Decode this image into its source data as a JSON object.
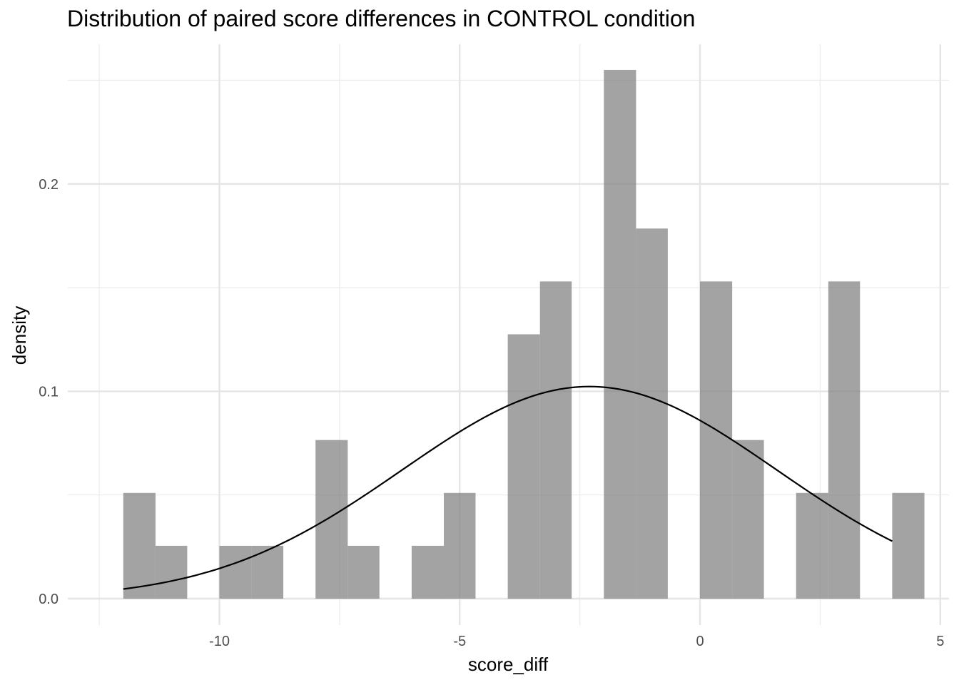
{
  "chart_data": {
    "type": "bar",
    "subtype": "histogram-with-normal-density-curve",
    "title": "Distribution of paired score differences in CONTROL condition",
    "xlabel": "score_diff",
    "ylabel": "density",
    "xlim": [
      -12.5,
      5
    ],
    "ylim": [
      0,
      0.255
    ],
    "x_ticks": [
      -10,
      -5,
      0,
      5
    ],
    "x_tick_labels": [
      "-10",
      "-5",
      "0",
      "5"
    ],
    "y_ticks": [
      0.0,
      0.1,
      0.2
    ],
    "y_tick_labels": [
      "0.0",
      "0.1",
      "0.2"
    ],
    "grid": true,
    "bar_color": "#808080",
    "bins": [
      {
        "x0": -12.0,
        "x1": -11.33,
        "density": 0.051
      },
      {
        "x0": -11.33,
        "x1": -10.67,
        "density": 0.0255
      },
      {
        "x0": -10.0,
        "x1": -9.33,
        "density": 0.0255
      },
      {
        "x0": -9.33,
        "x1": -8.67,
        "density": 0.0255
      },
      {
        "x0": -8.0,
        "x1": -7.33,
        "density": 0.0765
      },
      {
        "x0": -7.33,
        "x1": -6.67,
        "density": 0.0255
      },
      {
        "x0": -6.0,
        "x1": -5.33,
        "density": 0.0255
      },
      {
        "x0": -5.33,
        "x1": -4.67,
        "density": 0.051
      },
      {
        "x0": -4.0,
        "x1": -3.33,
        "density": 0.1275
      },
      {
        "x0": -3.33,
        "x1": -2.67,
        "density": 0.153
      },
      {
        "x0": -2.0,
        "x1": -1.33,
        "density": 0.255
      },
      {
        "x0": -1.33,
        "x1": -0.67,
        "density": 0.1785
      },
      {
        "x0": 0.0,
        "x1": 0.67,
        "density": 0.153
      },
      {
        "x0": 0.67,
        "x1": 1.33,
        "density": 0.0765
      },
      {
        "x0": 2.0,
        "x1": 2.67,
        "density": 0.051
      },
      {
        "x0": 2.67,
        "x1": 3.33,
        "density": 0.153
      },
      {
        "x0": 4.0,
        "x1": 4.67,
        "density": 0.051
      }
    ],
    "normal_curve": {
      "mean": -2.3,
      "sd": 3.9,
      "x_from": -12.0,
      "x_to": 4.0,
      "color": "#000000"
    }
  }
}
